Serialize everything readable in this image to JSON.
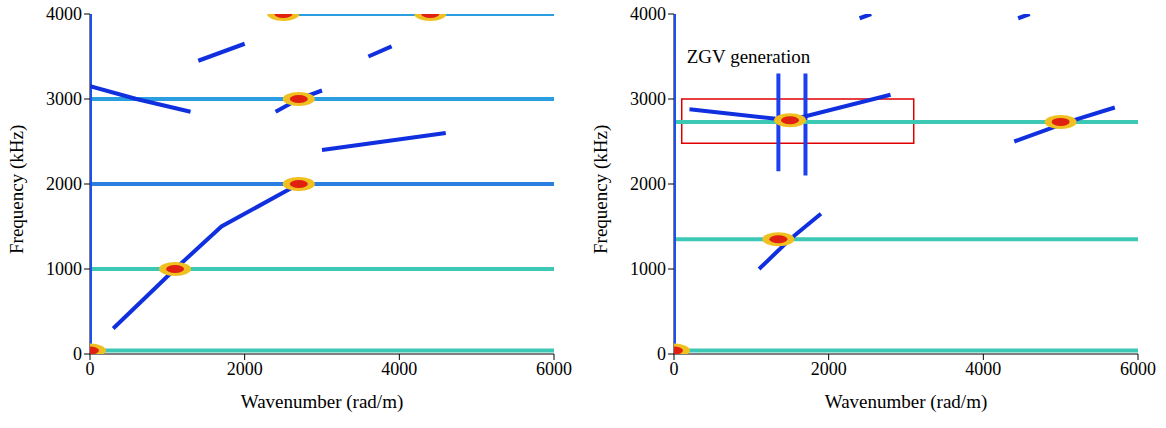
{
  "chart_data": [
    {
      "type": "line",
      "x_label": "Wavenumber (rad/m)",
      "y_label": "Frequency (kHz)",
      "xlim": [
        0,
        6000
      ],
      "ylim": [
        0,
        4000
      ],
      "xticks": [
        0,
        2000,
        4000,
        6000
      ],
      "yticks": [
        0,
        1000,
        2000,
        3000,
        4000
      ],
      "series": [
        {
          "type": "line",
          "color": "#3cc8b4",
          "x": [
            0,
            6000
          ],
          "values": [
            40,
            40
          ]
        },
        {
          "type": "line",
          "color": "#3cc8b4",
          "x": [
            0,
            6000
          ],
          "values": [
            1000,
            1000
          ]
        },
        {
          "type": "line",
          "color": "#2a7ee0",
          "x": [
            0,
            6000
          ],
          "values": [
            2000,
            2000
          ]
        },
        {
          "type": "line",
          "color": "#2a9ee0",
          "x": [
            0,
            6000
          ],
          "values": [
            3000,
            3000
          ]
        },
        {
          "type": "line",
          "color": "#2a9ee0",
          "x": [
            2300,
            6000
          ],
          "values": [
            4000,
            4000
          ]
        },
        {
          "type": "line",
          "color": "#1a50f0",
          "x": [
            0,
            0
          ],
          "values": [
            0,
            4000
          ]
        },
        {
          "type": "line",
          "color": "#1030e0",
          "x": [
            300,
            700,
            1100,
            1700,
            2700
          ],
          "values": [
            300,
            650,
            1000,
            1500,
            2000
          ]
        },
        {
          "type": "line",
          "color": "#1030e0",
          "x": [
            0,
            600,
            1300
          ],
          "values": [
            3150,
            3000,
            2850
          ]
        },
        {
          "type": "line",
          "color": "#1030e0",
          "x": [
            2400,
            2700,
            3000
          ],
          "values": [
            2850,
            3000,
            3100
          ]
        },
        {
          "type": "line",
          "color": "#1030e0",
          "x": [
            3000,
            4600
          ],
          "values": [
            2400,
            2600
          ]
        },
        {
          "type": "line",
          "color": "#1030e0",
          "x": [
            1400,
            2000
          ],
          "values": [
            3450,
            3650
          ]
        },
        {
          "type": "line",
          "color": "#1030e0",
          "x": [
            3600,
            3900
          ],
          "values": [
            3500,
            3620
          ]
        },
        {
          "type": "scatter",
          "marker": "circle",
          "color": "#e02010",
          "x": [
            0,
            1100,
            2700,
            2700,
            2500,
            4400
          ],
          "values": [
            40,
            1000,
            2000,
            3000,
            4000,
            4000
          ]
        }
      ]
    },
    {
      "type": "line",
      "x_label": "Wavenumber (rad/m)",
      "y_label": "Frequency (kHz)",
      "xlim": [
        0,
        6000
      ],
      "ylim": [
        0,
        4000
      ],
      "xticks": [
        0,
        2000,
        4000,
        6000
      ],
      "yticks": [
        0,
        1000,
        2000,
        3000,
        4000
      ],
      "annotations": [
        {
          "text": "ZGV generation",
          "x": 100,
          "y": 3500
        }
      ],
      "highlight_box": {
        "x": [
          100,
          3100
        ],
        "y": [
          2480,
          3000
        ],
        "color": "#e00000"
      },
      "series": [
        {
          "type": "line",
          "color": "#3cc8b4",
          "x": [
            0,
            6000
          ],
          "values": [
            40,
            40
          ]
        },
        {
          "type": "line",
          "color": "#3cc8b4",
          "x": [
            0,
            6000
          ],
          "values": [
            1350,
            1350
          ]
        },
        {
          "type": "line",
          "color": "#1a40f0",
          "x": [
            1350,
            1350
          ],
          "values": [
            2150,
            3300
          ]
        },
        {
          "type": "line",
          "color": "#1a40f0",
          "x": [
            1700,
            1700
          ],
          "values": [
            2100,
            3300
          ]
        },
        {
          "type": "line",
          "color": "#3cc8b4",
          "x": [
            0,
            6000
          ],
          "values": [
            2730,
            2730
          ]
        },
        {
          "type": "line",
          "color": "#1a50f0",
          "x": [
            0,
            0
          ],
          "values": [
            0,
            4000
          ]
        },
        {
          "type": "line",
          "color": "#1030e0",
          "x": [
            1100,
            1500,
            1900
          ],
          "values": [
            1000,
            1350,
            1650
          ]
        },
        {
          "type": "line",
          "color": "#1030e0",
          "x": [
            200,
            1500,
            2800
          ],
          "values": [
            2880,
            2750,
            3050
          ]
        },
        {
          "type": "line",
          "color": "#1030e0",
          "x": [
            4400,
            5100,
            5700
          ],
          "values": [
            2500,
            2730,
            2900
          ]
        },
        {
          "type": "line",
          "color": "#1030e0",
          "x": [
            2400,
            2550
          ],
          "values": [
            3950,
            4000
          ]
        },
        {
          "type": "line",
          "color": "#1030e0",
          "x": [
            4450,
            4600
          ],
          "values": [
            3950,
            4000
          ]
        },
        {
          "type": "scatter",
          "marker": "circle",
          "color": "#e02010",
          "x": [
            0,
            1350,
            1500,
            5000
          ],
          "values": [
            40,
            1350,
            2750,
            2730
          ]
        }
      ]
    }
  ]
}
